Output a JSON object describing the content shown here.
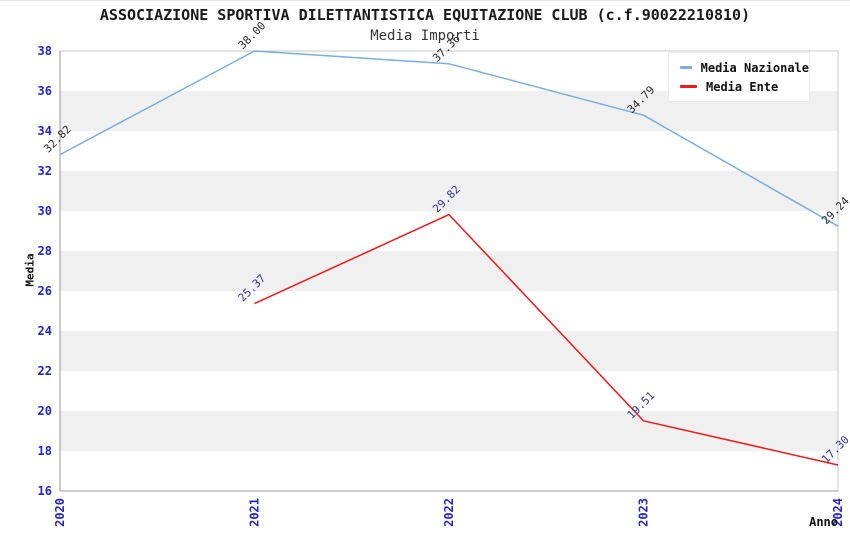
{
  "chart_data": {
    "type": "line",
    "title": "ASSOCIAZIONE SPORTIVA DILETTANTISTICA EQUITAZIONE CLUB (c.f.90022210810)",
    "subtitle": "Media Importi",
    "xlabel": "Anno",
    "ylabel": "Media",
    "xlim": [
      2020,
      2024
    ],
    "ylim": [
      16,
      38
    ],
    "y_tick_step": 2,
    "x_ticks": [
      2020,
      2021,
      2022,
      2023,
      2024
    ],
    "grid": "alternating-horizontal-bands",
    "band_colors": [
      "#ffffff",
      "#f0f0f0"
    ],
    "axis_tick_color": "#2424cf",
    "plot_border_color": "#c9c9c9",
    "axis_line_color": "#999999",
    "legend_position": "top-right",
    "series": [
      {
        "name": "Media Nazionale",
        "color": "#7aaede",
        "label_color": "#2b2b2b",
        "x": [
          2020,
          2021,
          2022,
          2023,
          2024
        ],
        "values": [
          32.82,
          38.0,
          37.36,
          34.79,
          29.24
        ],
        "labels": [
          "32.82",
          "38.00",
          "37.36",
          "34.79",
          "29.24"
        ]
      },
      {
        "name": "Media Ente",
        "color": "#f01818",
        "label_color": "#333399",
        "x": [
          2021,
          2022,
          2023,
          2024
        ],
        "values": [
          25.37,
          29.82,
          19.51,
          17.3
        ],
        "labels": [
          "25.37",
          "29.82",
          "19.51",
          "17.30"
        ]
      }
    ]
  }
}
